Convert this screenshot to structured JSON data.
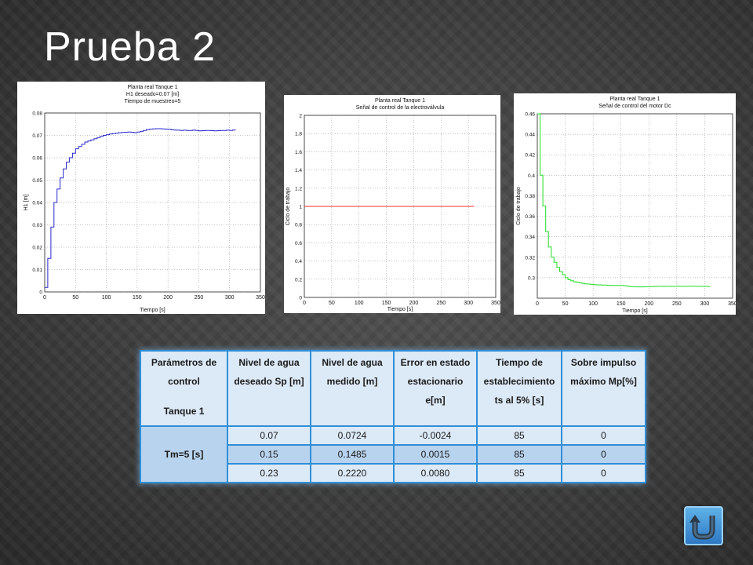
{
  "slide": {
    "title": "Prueba 2"
  },
  "chart_data": [
    {
      "type": "line",
      "title": [
        "Planta real Tanque 1",
        "H1 deseado=0.07 [m]",
        "Tiempo de muestreo=5"
      ],
      "xlabel": "Tiempo [s]",
      "ylabel": "H1 [m]",
      "xlim": [
        0,
        350
      ],
      "ylim": [
        0,
        0.08
      ],
      "xticks": [
        "0",
        "50",
        "100",
        "150",
        "200",
        "250",
        "300",
        "350"
      ],
      "yticks": [
        "0",
        "0.01",
        "0.02",
        "0.03",
        "0.04",
        "0.05",
        "0.06",
        "0.07",
        "0.08"
      ],
      "grid": true,
      "step": true,
      "series": [
        {
          "color": "#2a2acc",
          "x": [
            0,
            5,
            10,
            15,
            20,
            25,
            30,
            35,
            40,
            45,
            50,
            55,
            60,
            65,
            70,
            75,
            80,
            85,
            90,
            95,
            100,
            105,
            110,
            115,
            120,
            125,
            130,
            135,
            140,
            145,
            150,
            155,
            160,
            165,
            170,
            175,
            180,
            185,
            190,
            195,
            200,
            205,
            210,
            215,
            220,
            225,
            230,
            235,
            240,
            245,
            250,
            255,
            260,
            265,
            270,
            275,
            280,
            285,
            290,
            295,
            300,
            305,
            310
          ],
          "y": [
            0.002,
            0.015,
            0.029,
            0.04,
            0.046,
            0.051,
            0.055,
            0.058,
            0.06,
            0.062,
            0.064,
            0.065,
            0.066,
            0.067,
            0.0675,
            0.068,
            0.0685,
            0.069,
            0.0695,
            0.07,
            0.0703,
            0.0706,
            0.0708,
            0.071,
            0.0712,
            0.0713,
            0.0714,
            0.0715,
            0.0714,
            0.0712,
            0.0715,
            0.0718,
            0.0722,
            0.0726,
            0.0728,
            0.0729,
            0.073,
            0.073,
            0.0729,
            0.0728,
            0.0727,
            0.0725,
            0.0724,
            0.0723,
            0.0722,
            0.0723,
            0.0722,
            0.0722,
            0.0723,
            0.0722,
            0.072,
            0.0721,
            0.0722,
            0.0722,
            0.0721,
            0.072,
            0.0721,
            0.0722,
            0.0722,
            0.0723,
            0.0722,
            0.0724,
            0.0724
          ]
        }
      ]
    },
    {
      "type": "line",
      "title": [
        "Planta real Tanque 1",
        "Señal de control de la electroválvula"
      ],
      "xlabel": "Tiempo [s]",
      "ylabel": "Ciclo de trabajo",
      "xlim": [
        0,
        350
      ],
      "ylim": [
        0,
        2
      ],
      "xticks": [
        "0",
        "50",
        "100",
        "150",
        "200",
        "250",
        "300",
        "350"
      ],
      "yticks": [
        "0",
        "0.2",
        "0.4",
        "0.6",
        "0.8",
        "1",
        "1.2",
        "1.4",
        "1.6",
        "1.8",
        "2"
      ],
      "grid": true,
      "step": false,
      "series": [
        {
          "color": "#ee3030",
          "x": [
            0,
            310
          ],
          "y": [
            1,
            1
          ]
        }
      ]
    },
    {
      "type": "line",
      "title": [
        "Planta real Tanque 1",
        "Señal de control del motor Dc"
      ],
      "xlabel": "Tiempo [s]",
      "ylabel": "Ciclo de trabajo",
      "xlim": [
        0,
        350
      ],
      "ylim": [
        0.28,
        0.46
      ],
      "xticks": [
        "0",
        "50",
        "100",
        "150",
        "200",
        "250",
        "300",
        "350"
      ],
      "yticks": [
        "0.3",
        "0.32",
        "0.34",
        "0.36",
        "0.38",
        "0.4",
        "0.42",
        "0.44",
        "0.46"
      ],
      "grid": true,
      "step": true,
      "series": [
        {
          "color": "#22dd22",
          "x": [
            0,
            5,
            10,
            15,
            20,
            25,
            30,
            35,
            40,
            45,
            50,
            55,
            60,
            65,
            70,
            75,
            80,
            85,
            90,
            95,
            100,
            105,
            110,
            115,
            120,
            125,
            130,
            135,
            140,
            145,
            150,
            155,
            160,
            165,
            170,
            175,
            180,
            185,
            190,
            195,
            200,
            205,
            210,
            215,
            220,
            225,
            230,
            235,
            240,
            245,
            250,
            255,
            260,
            265,
            270,
            275,
            280,
            285,
            290,
            295,
            300,
            305,
            310
          ],
          "y": [
            0.46,
            0.4,
            0.37,
            0.345,
            0.33,
            0.32,
            0.315,
            0.31,
            0.306,
            0.303,
            0.3,
            0.298,
            0.297,
            0.296,
            0.2955,
            0.295,
            0.2945,
            0.294,
            0.2938,
            0.2935,
            0.2932,
            0.293,
            0.293,
            0.2928,
            0.2928,
            0.2926,
            0.2926,
            0.2925,
            0.2925,
            0.2924,
            0.2925,
            0.2922,
            0.2918,
            0.2914,
            0.2912,
            0.2911,
            0.291,
            0.291,
            0.2911,
            0.2912,
            0.2913,
            0.2914,
            0.2915,
            0.2916,
            0.2916,
            0.2915,
            0.2916,
            0.2916,
            0.2915,
            0.2916,
            0.2918,
            0.2917,
            0.2916,
            0.2916,
            0.2917,
            0.2918,
            0.2917,
            0.2916,
            0.2916,
            0.2915,
            0.2916,
            0.2914,
            0.2914
          ]
        }
      ]
    },
    {
      "type": "table",
      "headers": [
        {
          "lines": [
            "Parámetros de control"
          ],
          "sub": "Tanque 1"
        },
        {
          "lines": [
            "Nivel de agua deseado Sp [m]"
          ]
        },
        {
          "lines": [
            "Nivel de agua medido [m]"
          ]
        },
        {
          "lines": [
            "Error en estado estacionario e[m]"
          ]
        },
        {
          "lines": [
            "Tiempo de establecimiento ts al 5% [s]"
          ]
        },
        {
          "lines": [
            "Sobre impulso máximo Mp[%]"
          ]
        }
      ],
      "group_label": "Tm=5 [s]",
      "rows": [
        [
          "0.07",
          "0.0724",
          "-0.0024",
          "85",
          "0"
        ],
        [
          "0.15",
          "0.1485",
          "0.0015",
          "85",
          "0"
        ],
        [
          "0.23",
          "0.2220",
          "0.0080",
          "85",
          "0"
        ]
      ]
    }
  ],
  "nav": {
    "icon": "return-arrow-icon"
  }
}
